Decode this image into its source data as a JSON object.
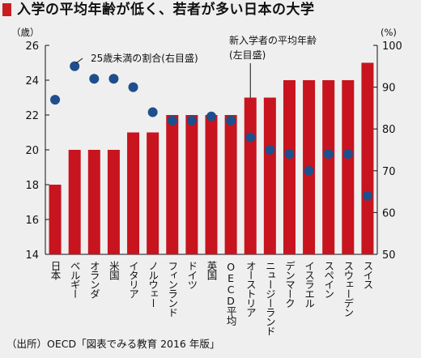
{
  "title": "入学の平均年齢が低く、若者が多い日本の大学",
  "source": "（出所）OECD「図表でみる教育 2016 年版」",
  "chart_data": {
    "type": "bar",
    "title": "入学の平均年齢が低く、若者が多い日本の大学",
    "left_unit": "（歳）",
    "right_unit": "(%)",
    "ylim": [
      14,
      26
    ],
    "y_ticks": [
      14,
      16,
      18,
      20,
      22,
      24,
      26
    ],
    "y2lim": [
      50,
      100
    ],
    "y2_ticks": [
      50,
      60,
      70,
      80,
      90,
      100
    ],
    "categories": [
      "日本",
      "ベルギー",
      "オランダ",
      "米国",
      "イタリア",
      "ノルウェー",
      "フィンランド",
      "ドイツ",
      "英国",
      "OECD平均",
      "オーストリア",
      "ニュージーランド",
      "デンマーク",
      "イスラエル",
      "スペイン",
      "スウェーデン",
      "スイス"
    ],
    "series": [
      {
        "name": "新入学者の平均年齢(左目盛)",
        "type": "bar",
        "axis": "left",
        "color": "#c8141e",
        "values": [
          18,
          20,
          20,
          20,
          21,
          21,
          22,
          22,
          22,
          22,
          23,
          23,
          24,
          24,
          24,
          24,
          25
        ]
      },
      {
        "name": "25歳未満の割合(右目盛)",
        "type": "scatter",
        "axis": "right",
        "color": "#1f4e8c",
        "values": [
          87,
          95,
          92,
          92,
          90,
          84,
          82,
          82,
          83,
          82,
          78,
          75,
          74,
          70,
          74,
          74,
          64
        ]
      }
    ],
    "annotations": {
      "dots_label": "25歳未満の割合(右目盛)",
      "bars_label_line1": "新入学者の平均年齢",
      "bars_label_line2": "(左目盛)"
    },
    "grid": false
  }
}
